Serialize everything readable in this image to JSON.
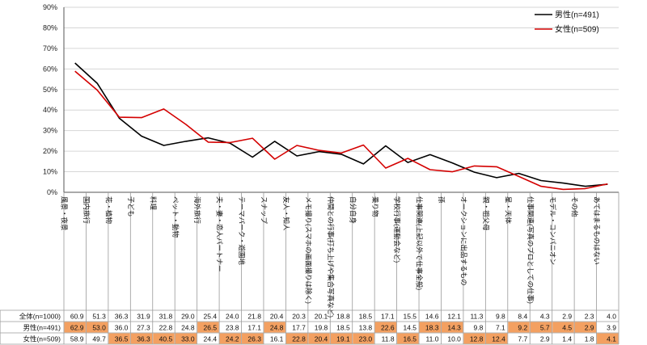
{
  "chart_data": {
    "type": "line",
    "title": "",
    "xlabel": "",
    "ylabel": "",
    "ylim": [
      0,
      90
    ],
    "ytick_labels": [
      "0%",
      "10%",
      "20%",
      "30%",
      "40%",
      "50%",
      "60%",
      "70%",
      "80%",
      "90%"
    ],
    "categories": [
      "風景・夜景",
      "国内旅行",
      "花・植物",
      "子ども",
      "料理",
      "ペット・動物",
      "海外旅行",
      "夫・妻・恋人パートナー",
      "テーマパーク・遊園地",
      "スナップ",
      "友人・知人",
      "メモ撮り(スマホの画面撮りは除く)",
      "仲間との行事(打ち上げや集合写真など)",
      "自分自身",
      "乗り物",
      "学校行事(運動会など)",
      "仕事関連(上記以外で仕事全般)",
      "孫",
      "オークションに出品するもの",
      "親・祖父母",
      "星・天体",
      "仕事関連(写真のプロとしての仕事)",
      "モデル・コンパニオン",
      "その他",
      "あてはまるものはない"
    ],
    "series": [
      {
        "name": "男性(n=491)",
        "color": "#000000",
        "values": [
          62.9,
          53.0,
          36.0,
          27.3,
          22.8,
          24.8,
          26.5,
          23.8,
          17.1,
          24.8,
          17.7,
          19.8,
          18.5,
          13.8,
          22.6,
          14.5,
          18.3,
          14.3,
          9.8,
          7.1,
          9.2,
          5.7,
          4.5,
          2.9,
          3.9
        ]
      },
      {
        "name": "女性(n=509)",
        "color": "#d40000",
        "values": [
          58.9,
          49.7,
          36.5,
          36.3,
          40.5,
          33.0,
          24.4,
          24.2,
          26.3,
          16.1,
          22.8,
          20.4,
          19.1,
          23.0,
          11.8,
          16.5,
          11.0,
          10.0,
          12.8,
          12.4,
          7.7,
          2.9,
          1.4,
          1.8,
          4.1
        ]
      }
    ],
    "legend_position": "top-right",
    "table": {
      "rows": [
        {
          "label": "全体(n=1000)",
          "values": [
            "60.9",
            "51.3",
            "36.3",
            "31.9",
            "31.8",
            "29.0",
            "25.4",
            "24.0",
            "21.8",
            "20.4",
            "20.3",
            "20.1",
            "18.8",
            "18.5",
            "17.1",
            "15.5",
            "14.6",
            "12.1",
            "11.3",
            "9.8",
            "8.4",
            "4.3",
            "2.9",
            "2.3",
            "4.0"
          ]
        },
        {
          "label": "男性(n=491)",
          "values": [
            "62.9",
            "53.0",
            "36.0",
            "27.3",
            "22.8",
            "24.8",
            "26.5",
            "23.8",
            "17.1",
            "24.8",
            "17.7",
            "19.8",
            "18.5",
            "13.8",
            "22.6",
            "14.5",
            "18.3",
            "14.3",
            "9.8",
            "7.1",
            "9.2",
            "5.7",
            "4.5",
            "2.9",
            "3.9"
          ]
        },
        {
          "label": "女性(n=509)",
          "values": [
            "58.9",
            "49.7",
            "36.5",
            "36.3",
            "40.5",
            "33.0",
            "24.4",
            "24.2",
            "26.3",
            "16.1",
            "22.8",
            "20.4",
            "19.1",
            "23.0",
            "11.8",
            "16.5",
            "11.0",
            "10.0",
            "12.8",
            "12.4",
            "7.7",
            "2.9",
            "1.4",
            "1.8",
            "4.1"
          ]
        }
      ],
      "highlight_color": "#f3a061"
    }
  }
}
